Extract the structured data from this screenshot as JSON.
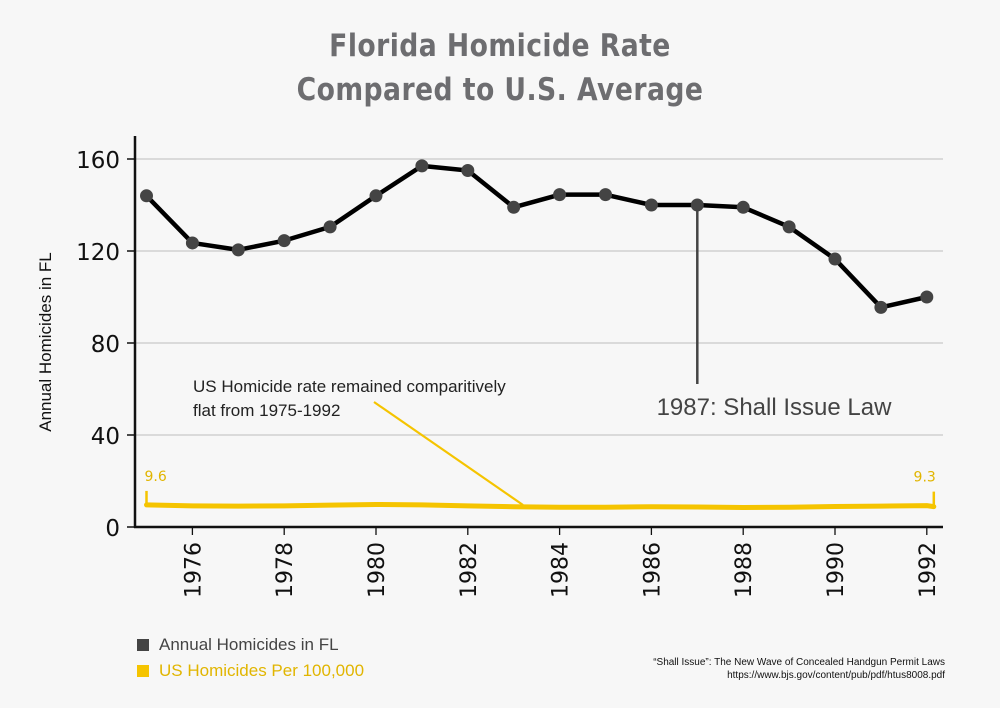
{
  "chart_data": {
    "type": "line",
    "title": [
      "Florida Homicide Rate",
      "Compared to U.S. Average"
    ],
    "xlabel": "",
    "ylabel": "Annual Homicides in FL",
    "x": [
      1975,
      1976,
      1977,
      1978,
      1979,
      1980,
      1981,
      1982,
      1983,
      1984,
      1985,
      1986,
      1987,
      1988,
      1989,
      1990,
      1991,
      1992
    ],
    "xticks": [
      "1976",
      "1978",
      "1980",
      "1982",
      "1984",
      "1986",
      "1988",
      "1990",
      "1992"
    ],
    "yticks": [
      "0",
      "40",
      "80",
      "120",
      "160"
    ],
    "ylim": [
      0,
      170
    ],
    "xlim": [
      1974.7,
      1992.4
    ],
    "grid": true,
    "series": [
      {
        "name": "Annual Homicides in FL",
        "color": "#000000",
        "marker_color": "#444444",
        "values": [
          144,
          123.5,
          120.5,
          124.5,
          130.5,
          144,
          157,
          155,
          139,
          144.5,
          144.5,
          140,
          140,
          139,
          130.5,
          116.5,
          95.5,
          100
        ]
      },
      {
        "name": "US Homicides Per 100,000",
        "color": "#f5c400",
        "values": [
          9.6,
          9.2,
          9.1,
          9.2,
          9.5,
          9.8,
          9.6,
          9.2,
          8.8,
          8.6,
          8.6,
          8.8,
          8.7,
          8.5,
          8.6,
          8.9,
          9.1,
          9.3
        ]
      }
    ],
    "annotations": [
      {
        "id": "us-flat",
        "text": [
          "US Homicide rate remained comparitively",
          "flat from 1975-1992"
        ],
        "color": "#f5c400"
      },
      {
        "id": "law",
        "text": "1987: Shall Issue Law",
        "x": 1987
      },
      {
        "id": "us-start",
        "text": "9.6",
        "x": 1975
      },
      {
        "id": "us-end",
        "text": "9.3",
        "x": 1992
      }
    ],
    "legend": {
      "placement": "bottom-left",
      "entries": [
        {
          "label": "Annual Homicides in FL",
          "color": "#444444",
          "text_color": "#444444"
        },
        {
          "label": "US Homicides Per 100,000",
          "color": "#f5c400",
          "text_color": "#e1b500"
        }
      ]
    }
  },
  "source": {
    "line1": "“Shall Issue”: The New Wave of Concealed Handgun Permit Laws",
    "line2": "https://www.bjs.gov/content/pub/pdf/htus8008.pdf"
  }
}
